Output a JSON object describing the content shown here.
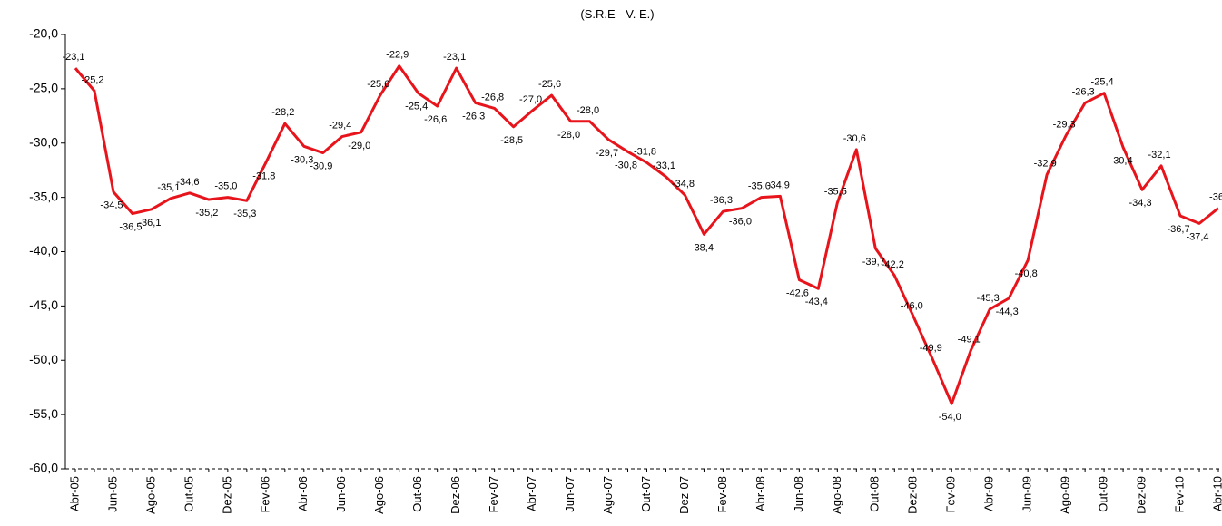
{
  "chart_data": {
    "type": "line",
    "title": "(S.R.E - V. E.)",
    "categories": [
      "Abr-05",
      null,
      "Jun-05",
      null,
      "Ago-05",
      null,
      "Out-05",
      null,
      "Dez-05",
      null,
      "Fev-06",
      null,
      "Abr-06",
      null,
      "Jun-06",
      null,
      "Ago-06",
      null,
      "Out-06",
      null,
      "Dez-06",
      null,
      "Fev-07",
      null,
      "Abr-07",
      null,
      "Jun-07",
      null,
      "Ago-07",
      null,
      "Out-07",
      null,
      "Dez-07",
      null,
      "Fev-08",
      null,
      "Abr-08",
      null,
      "Jun-08",
      null,
      "Ago-08",
      null,
      "Out-08",
      null,
      "Dez-08",
      null,
      "Fev-09",
      null,
      "Abr-09",
      null,
      "Jun-09",
      null,
      "Ago-09",
      null,
      "Out-09",
      null,
      "Dez-09",
      null,
      "Fev-10",
      null,
      "Abr-10"
    ],
    "series": [
      {
        "color": "#e8141c",
        "values": [
          -23.1,
          -25.2,
          -34.5,
          -36.5,
          -36.1,
          -35.1,
          -34.6,
          -35.2,
          -35.0,
          -35.3,
          -31.8,
          -28.2,
          -30.3,
          -30.9,
          -29.4,
          -29.0,
          -25.6,
          -22.9,
          -25.4,
          -26.6,
          -23.1,
          -26.3,
          -26.8,
          -28.5,
          -27.0,
          -25.6,
          -28.0,
          -28.0,
          -29.7,
          -30.8,
          -31.8,
          -33.1,
          -34.8,
          -38.4,
          -36.3,
          -36.0,
          -35.0,
          -34.9,
          -42.6,
          -43.4,
          -35.5,
          -30.6,
          -39.7,
          -42.2,
          -46.0,
          -49.9,
          -54.0,
          -49.1,
          -45.3,
          -44.3,
          -40.8,
          -32.9,
          -29.3,
          -26.3,
          -25.4,
          -30.4,
          -34.3,
          -32.1,
          -36.7,
          -37.4,
          -36.0
        ],
        "value_labels": [
          "-23,1",
          "-25,2",
          "-34,5",
          "-36,5",
          "-36,1",
          "-35,1",
          "-34,6",
          "-35,2",
          "-35,0",
          "-35,3",
          "-31,8",
          "-28,2",
          "-30,3",
          "-30,9",
          "-29,4",
          "-29,0",
          "-25,6",
          "-22,9",
          "-25,4",
          "-26,6",
          "-23,1",
          "-26,3",
          "-26,8",
          "-28,5",
          "-27,0",
          "-25,6",
          "-28,0",
          "-28,0",
          "-29,7",
          "-30,8",
          "-31,8",
          "-33,1",
          "-34,8",
          "-38,4",
          "-36,3",
          "-36,0",
          "-35,0",
          "-34,9",
          "-42,6",
          "-43,4",
          "-35,5",
          "-30,6",
          "-39,7",
          "-42,2",
          "-46,0",
          "-49,9",
          "-54,0",
          "-49,1",
          "-45,3",
          "-44,3",
          "-40,8",
          "-32,9",
          "-29,3",
          "-26,3",
          "-25,4",
          "-30,4",
          "-34,3",
          "-32,1",
          "-36,7",
          "-37,4",
          "-36"
        ]
      }
    ],
    "ylim": [
      -60,
      -20
    ],
    "yticks": [
      {
        "value": -60,
        "label": "-60,0"
      },
      {
        "value": -55,
        "label": "-55,0"
      },
      {
        "value": -50,
        "label": "-50,0"
      },
      {
        "value": -45,
        "label": "-45,0"
      },
      {
        "value": -40,
        "label": "-40,0"
      },
      {
        "value": -35,
        "label": "-35,0"
      },
      {
        "value": -30,
        "label": "-30,0"
      },
      {
        "value": -25,
        "label": "-25,0"
      },
      {
        "value": -20,
        "label": "-20,0"
      }
    ]
  }
}
